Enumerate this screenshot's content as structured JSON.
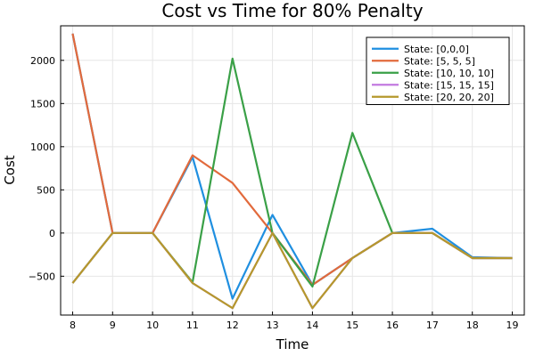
{
  "chart_data": {
    "type": "line",
    "title": "Cost vs Time for 80% Penalty",
    "xlabel": "Time",
    "ylabel": "Cost",
    "xlim": [
      7.7,
      19.3
    ],
    "ylim": [
      -950,
      2400
    ],
    "xticks": [
      8,
      9,
      10,
      11,
      12,
      13,
      14,
      15,
      16,
      17,
      18,
      19
    ],
    "yticks": [
      -500,
      0,
      500,
      1000,
      1500,
      2000
    ],
    "ytick_labels": [
      "−500",
      "0",
      "500",
      "1000",
      "1500",
      "2000"
    ],
    "grid": true,
    "legend_position": "top-right",
    "x": [
      8,
      9,
      10,
      11,
      12,
      13,
      14,
      15,
      16,
      17,
      18,
      19
    ],
    "series": [
      {
        "name": "State: [0,0,0]",
        "color": "#1f8fe0",
        "values": [
          2310,
          0,
          0,
          880,
          -760,
          210,
          -600,
          -290,
          0,
          50,
          -280,
          -290
        ]
      },
      {
        "name": "State: [5, 5, 5]",
        "color": "#e26a3c",
        "values": [
          2310,
          0,
          0,
          900,
          580,
          0,
          -600,
          -290,
          0,
          0,
          -290,
          -290
        ]
      },
      {
        "name": "State: [10, 10, 10]",
        "color": "#3aa047",
        "values": [
          -580,
          0,
          0,
          -570,
          2020,
          0,
          -620,
          1160,
          0,
          0,
          -290,
          -290
        ]
      },
      {
        "name": "State: [15, 15, 15]",
        "color": "#c27ae0",
        "values": [
          -580,
          0,
          0,
          -580,
          -870,
          0,
          -870,
          -290,
          0,
          0,
          -290,
          -290
        ]
      },
      {
        "name": "State: [20, 20, 20]",
        "color": "#b5982c",
        "values": [
          -580,
          0,
          0,
          -580,
          -870,
          0,
          -870,
          -290,
          0,
          0,
          -290,
          -290
        ]
      }
    ]
  }
}
